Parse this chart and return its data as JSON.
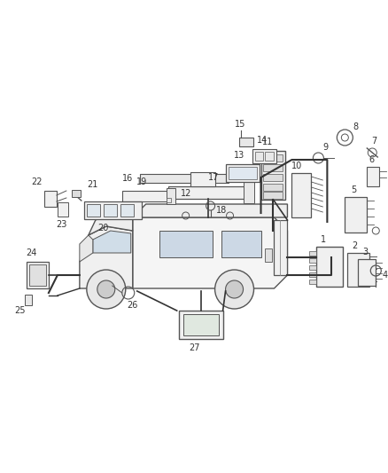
{
  "bg_color": "#ffffff",
  "fig_width": 4.38,
  "fig_height": 5.33,
  "dpi": 100,
  "lc": "#555555",
  "tc": "#333333",
  "fs": 7.0
}
